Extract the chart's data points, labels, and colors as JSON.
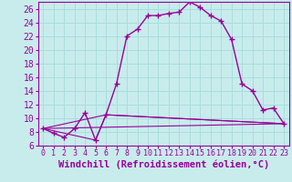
{
  "title": "",
  "xlabel": "Windchill (Refroidissement éolien,°C)",
  "bg_color": "#c8ecec",
  "line_color": "#990099",
  "xlim": [
    -0.5,
    23.5
  ],
  "ylim": [
    6,
    27
  ],
  "yticks": [
    6,
    8,
    10,
    12,
    14,
    16,
    18,
    20,
    22,
    24,
    26
  ],
  "xticks": [
    0,
    1,
    2,
    3,
    4,
    5,
    6,
    7,
    8,
    9,
    10,
    11,
    12,
    13,
    14,
    15,
    16,
    17,
    18,
    19,
    20,
    21,
    22,
    23
  ],
  "series": [
    {
      "x": [
        0,
        1,
        2,
        3,
        4,
        5,
        6,
        7,
        8,
        9,
        10,
        11,
        12,
        13,
        14,
        15,
        16,
        17,
        18,
        19,
        20,
        21,
        22,
        23
      ],
      "y": [
        8.5,
        7.8,
        7.2,
        8.5,
        10.8,
        6.8,
        10.5,
        15.0,
        22.0,
        23.0,
        25.0,
        25.0,
        25.3,
        25.5,
        27.0,
        26.2,
        25.0,
        24.2,
        21.5,
        15.0,
        14.0,
        11.2,
        11.5,
        9.2
      ],
      "marker": "+",
      "lw": 1.0
    },
    {
      "x": [
        0,
        5,
        6,
        23
      ],
      "y": [
        8.5,
        6.8,
        10.5,
        9.2
      ],
      "marker": null,
      "lw": 0.8
    },
    {
      "x": [
        0,
        6,
        23
      ],
      "y": [
        8.5,
        10.5,
        9.2
      ],
      "marker": null,
      "lw": 0.8
    },
    {
      "x": [
        0,
        23
      ],
      "y": [
        8.5,
        9.2
      ],
      "marker": null,
      "lw": 0.8
    }
  ],
  "grid_color": "#aadddd",
  "tick_fontsize": 6,
  "xlabel_fontsize": 7.5
}
